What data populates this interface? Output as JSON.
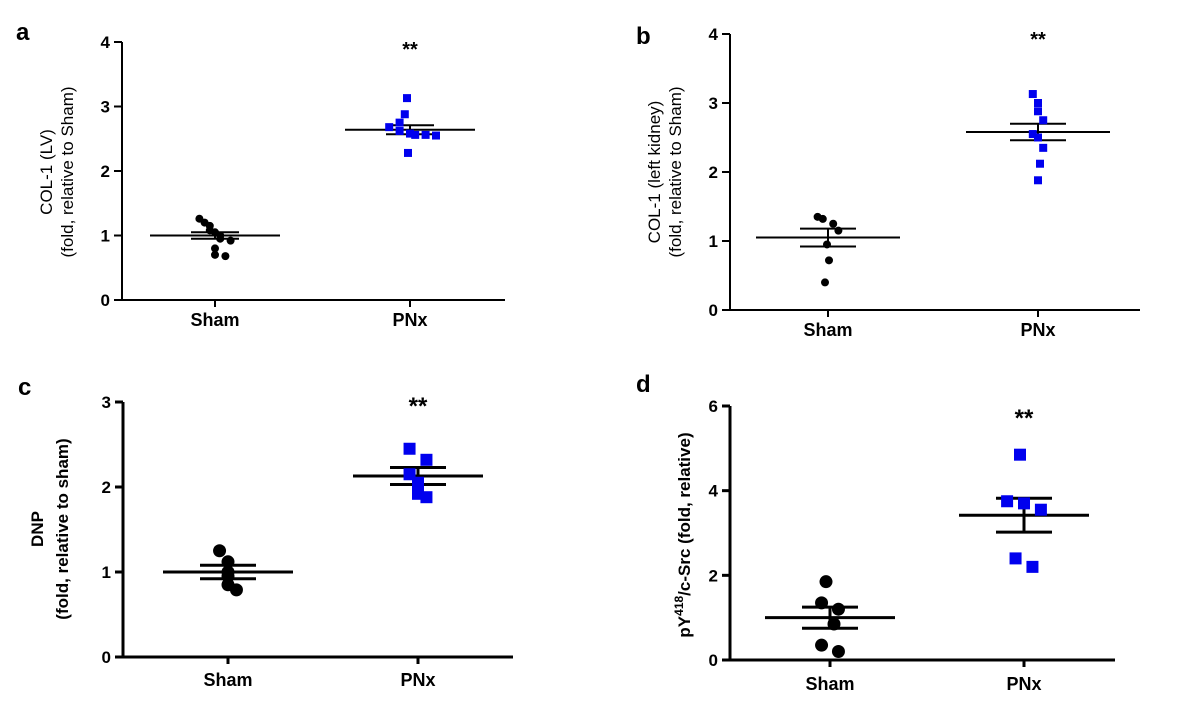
{
  "chart_data": [
    {
      "type": "scatter",
      "panel": "a",
      "ylabel_lines": [
        "COL-1 (LV)",
        "(fold, relative to Sham)"
      ],
      "ylim": [
        0,
        4
      ],
      "yticks": [
        0,
        1,
        2,
        3,
        4
      ],
      "categories": [
        "Sham",
        "PNx"
      ],
      "significance": "**",
      "series": [
        {
          "name": "Sham",
          "color": "#000000",
          "marker": "circle",
          "values": [
            1.26,
            1.2,
            1.15,
            1.08,
            1.05,
            1.0,
            0.95,
            0.92,
            0.8,
            0.68,
            0.7
          ],
          "mean": 1.0,
          "sem": 0.05
        },
        {
          "name": "PNx",
          "color": "#0000ee",
          "marker": "square",
          "values": [
            3.13,
            2.88,
            2.75,
            2.68,
            2.62,
            2.58,
            2.56,
            2.56,
            2.55,
            2.28
          ],
          "mean": 2.64,
          "sem": 0.07
        }
      ]
    },
    {
      "type": "scatter",
      "panel": "b",
      "ylabel_lines": [
        "COL-1 (left kidney)",
        "(fold, relative to Sham)"
      ],
      "ylim": [
        0,
        4
      ],
      "yticks": [
        0,
        1,
        2,
        3,
        4
      ],
      "categories": [
        "Sham",
        "PNx"
      ],
      "significance": "**",
      "series": [
        {
          "name": "Sham",
          "color": "#000000",
          "marker": "circle",
          "values": [
            1.35,
            1.32,
            1.25,
            1.15,
            0.95,
            0.72,
            0.4
          ],
          "mean": 1.05,
          "sem": 0.13
        },
        {
          "name": "PNx",
          "color": "#0000ee",
          "marker": "square",
          "values": [
            3.13,
            3.0,
            2.88,
            2.75,
            2.55,
            2.5,
            2.35,
            2.12,
            1.88
          ],
          "mean": 2.58,
          "sem": 0.12
        }
      ]
    },
    {
      "type": "scatter",
      "panel": "c",
      "ylabel_lines": [
        "DNP",
        "(fold, relative to sham)"
      ],
      "ylim": [
        0,
        3
      ],
      "yticks": [
        0,
        1,
        2,
        3
      ],
      "categories": [
        "Sham",
        "PNx"
      ],
      "significance": "**",
      "series": [
        {
          "name": "Sham",
          "color": "#000000",
          "marker": "circle",
          "values": [
            1.25,
            1.12,
            1.0,
            0.95,
            0.85,
            0.79
          ],
          "mean": 1.0,
          "sem": 0.08
        },
        {
          "name": "PNx",
          "color": "#0000ee",
          "marker": "square",
          "values": [
            2.45,
            2.32,
            2.15,
            2.05,
            1.92,
            1.88
          ],
          "mean": 2.13,
          "sem": 0.1
        }
      ]
    },
    {
      "type": "scatter",
      "panel": "d",
      "ylabel_lines": [
        "pY418/c-Src (fold, relative)"
      ],
      "ylim": [
        0,
        6
      ],
      "yticks": [
        0,
        2,
        4,
        6
      ],
      "categories": [
        "Sham",
        "PNx"
      ],
      "significance": "**",
      "series": [
        {
          "name": "Sham",
          "color": "#000000",
          "marker": "circle",
          "values": [
            1.85,
            1.35,
            1.2,
            0.85,
            0.35,
            0.2
          ],
          "mean": 1.0,
          "sem": 0.25
        },
        {
          "name": "PNx",
          "color": "#0000ee",
          "marker": "square",
          "values": [
            4.85,
            3.75,
            3.7,
            3.55,
            2.4,
            2.2
          ],
          "mean": 3.42,
          "sem": 0.4
        }
      ]
    }
  ]
}
